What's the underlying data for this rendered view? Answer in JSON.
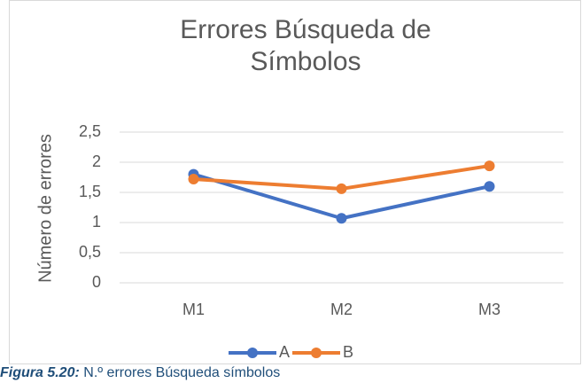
{
  "chart_data": {
    "type": "line",
    "title": "Errores Búsqueda de Símbolos",
    "y_label": "Número de errores",
    "categories": [
      "M1",
      "M2",
      "M3"
    ],
    "series": [
      {
        "name": "A",
        "color": "#4472c4",
        "values": [
          1.8,
          1.07,
          1.6
        ]
      },
      {
        "name": "B",
        "color": "#ed7d31",
        "values": [
          1.72,
          1.56,
          1.94
        ]
      }
    ],
    "ylim": [
      0,
      2.5
    ],
    "yticks": [
      0,
      {
        "value": 0.5,
        "label": "0,5"
      },
      1,
      {
        "value": 1.5,
        "label": "1,5"
      },
      2,
      {
        "value": 2.5,
        "label": "2,5"
      }
    ],
    "grid": true,
    "legend": "bottom"
  },
  "caption": {
    "label": "Figura 5.20:",
    "text": "N.º errores Búsqueda símbolos"
  }
}
